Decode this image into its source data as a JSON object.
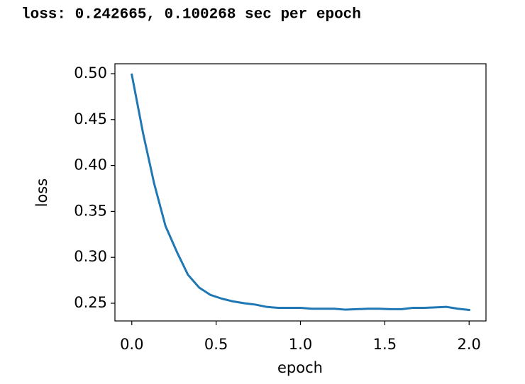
{
  "output_text": "loss: 0.242665, 0.100268 sec per epoch",
  "chart_data": {
    "type": "line",
    "xlabel": "epoch",
    "ylabel": "loss",
    "x": [
      0,
      0.067,
      0.133,
      0.2,
      0.267,
      0.333,
      0.4,
      0.467,
      0.533,
      0.6,
      0.667,
      0.733,
      0.8,
      0.867,
      0.933,
      1.0,
      1.067,
      1.133,
      1.2,
      1.267,
      1.333,
      1.4,
      1.467,
      1.533,
      1.6,
      1.667,
      1.733,
      1.8,
      1.867,
      1.933,
      2.0
    ],
    "series": [
      {
        "name": "loss",
        "color": "#1f77b4",
        "values": [
          0.499,
          0.435,
          0.38,
          0.334,
          0.306,
          0.281,
          0.267,
          0.259,
          0.255,
          0.252,
          0.25,
          0.2485,
          0.246,
          0.245,
          0.245,
          0.245,
          0.244,
          0.244,
          0.244,
          0.243,
          0.2435,
          0.244,
          0.244,
          0.2435,
          0.2435,
          0.245,
          0.245,
          0.2455,
          0.246,
          0.244,
          0.2427
        ]
      }
    ],
    "xlim": [
      -0.1,
      2.1
    ],
    "ylim": [
      0.2307,
      0.5108
    ],
    "xticks": [
      {
        "value": 0,
        "label": "0.0"
      },
      0.5,
      {
        "value": 1,
        "label": "1.0"
      },
      1.5,
      {
        "value": 2,
        "label": "2.0"
      }
    ],
    "yticks": [
      {
        "value": 0.25,
        "label": "0.25"
      },
      {
        "value": 0.3,
        "label": "0.30"
      },
      0.35,
      {
        "value": 0.4,
        "label": "0.40"
      },
      0.45,
      {
        "value": 0.5,
        "label": "0.50"
      }
    ],
    "grid": false
  }
}
